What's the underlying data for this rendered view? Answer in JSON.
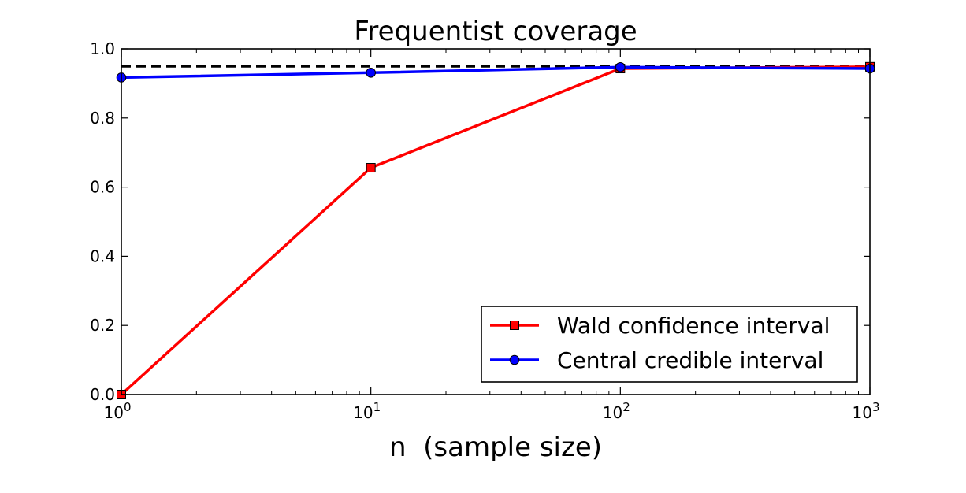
{
  "chart_data": {
    "type": "line",
    "title": "Frequentist coverage",
    "xlabel": "n  (sample size)",
    "ylabel": "",
    "xscale": "log",
    "xlim": [
      1,
      1000
    ],
    "ylim": [
      0.0,
      1.0
    ],
    "x_ticks": [
      {
        "value": 1,
        "base": "10",
        "exp": "0"
      },
      {
        "value": 10,
        "base": "10",
        "exp": "1"
      },
      {
        "value": 100,
        "base": "10",
        "exp": "2"
      },
      {
        "value": 1000,
        "base": "10",
        "exp": "3"
      }
    ],
    "y_ticks": [
      {
        "value": 0.0,
        "label": "0.0"
      },
      {
        "value": 0.2,
        "label": "0.2"
      },
      {
        "value": 0.4,
        "label": "0.4"
      },
      {
        "value": 0.6,
        "label": "0.6"
      },
      {
        "value": 0.8,
        "label": "0.8"
      },
      {
        "value": 1.0,
        "label": "1.0"
      }
    ],
    "x": [
      1,
      10,
      100,
      1000
    ],
    "series": [
      {
        "name": "Wald confidence interval",
        "values": [
          0.0,
          0.656,
          0.943,
          0.948
        ],
        "color": "#ff0000",
        "marker": "square"
      },
      {
        "name": "Central credible interval",
        "values": [
          0.917,
          0.931,
          0.947,
          0.943
        ],
        "color": "#0000ff",
        "marker": "circle"
      }
    ],
    "reference_line": {
      "y": 0.95,
      "style": "dashed",
      "color": "#000000"
    },
    "grid": false,
    "legend_position": "lower-right"
  }
}
